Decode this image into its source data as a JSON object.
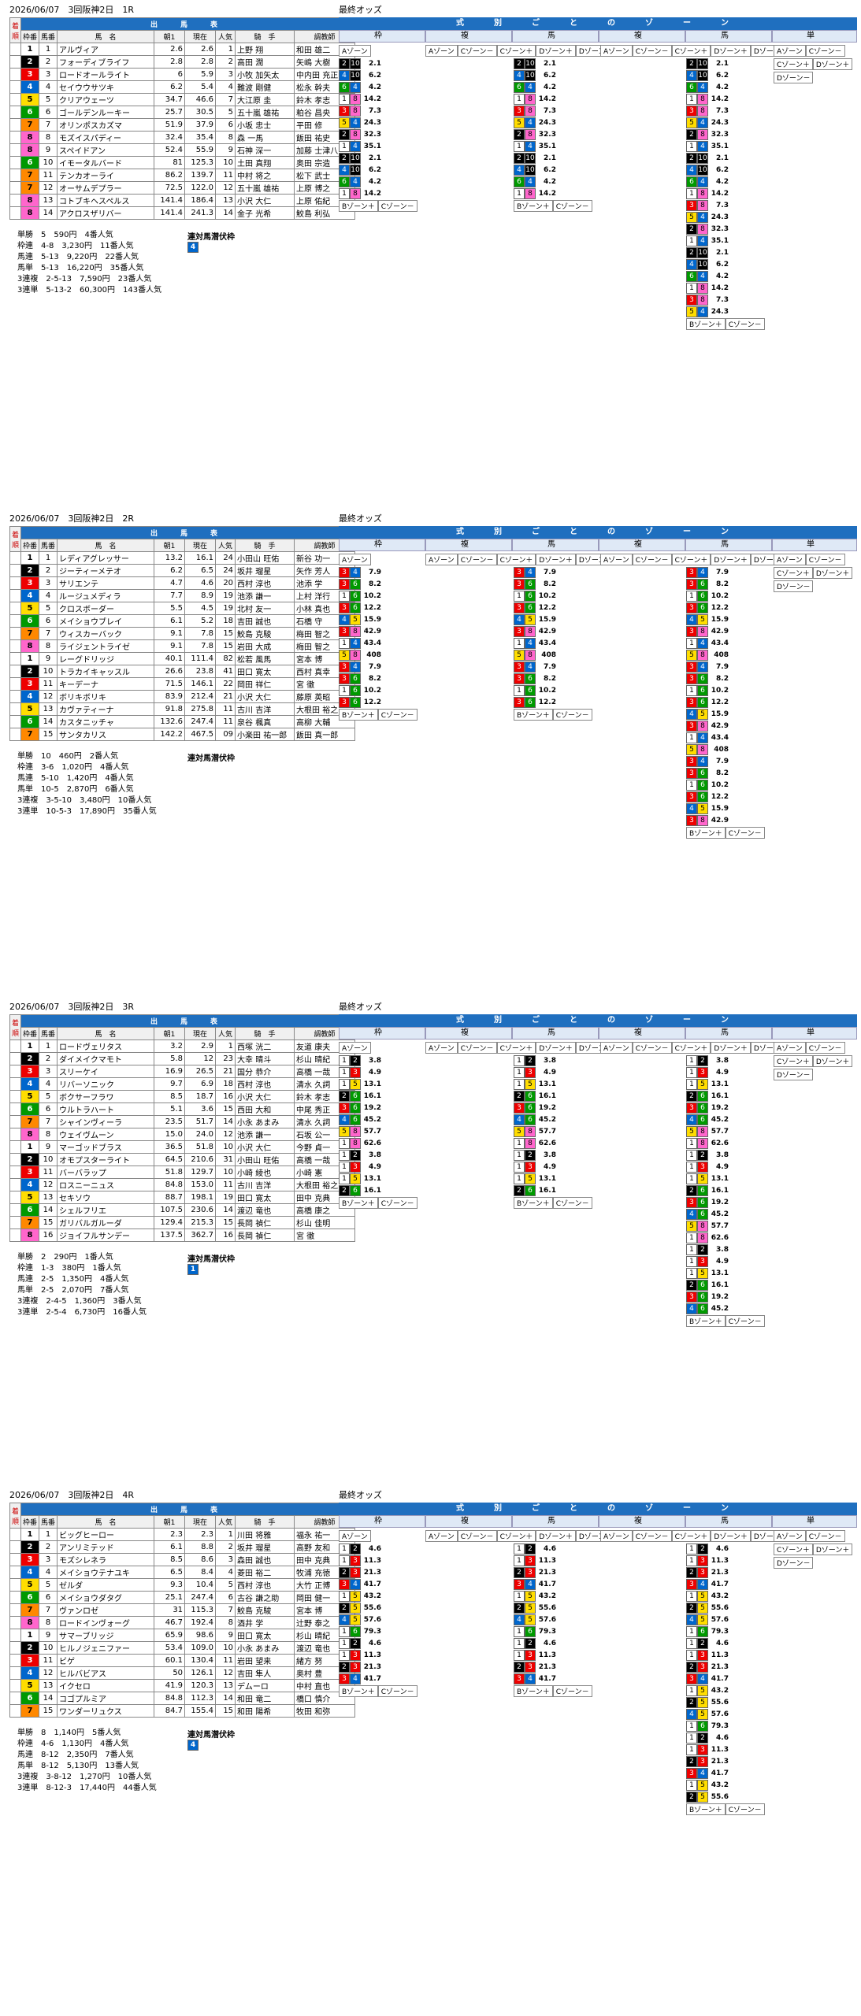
{
  "races": [
    {
      "header": "2026/06/07　3回阪神2日　1R",
      "table_title": "出　馬　表",
      "final_odds": "最終オッズ",
      "zone_title": "式　別　ご　と　の　ゾ　ー　ン",
      "cols": {
        "waku": "枠番",
        "uma": "馬番",
        "name": "馬　名",
        "odds_group": "単勝オッズ",
        "odds_first": "朝1",
        "odds_now": "現在",
        "ninki": "人気",
        "jockey": "騎　手",
        "trainer": "調教師"
      },
      "zone_heads": [
        "枠",
        "複",
        "馬",
        "複",
        "馬",
        "単"
      ],
      "zone_labels": [
        "Aゾーン",
        "Bゾーン＋",
        "Cゾーン－",
        "Bゾーン－",
        "Cゾーン＋",
        "Dゾーン＋",
        "Dゾーン－"
      ],
      "horses": [
        {
          "w": "1",
          "u": "1",
          "n": "アルヴィア",
          "a": "2.6",
          "b": "2.6",
          "p": "1",
          "j": "上野 翔",
          "t": "和田 雄二"
        },
        {
          "w": "2",
          "u": "2",
          "n": "フォーディブライフ",
          "a": "2.8",
          "b": "2.8",
          "p": "2",
          "j": "高田 潤",
          "t": "矢嶋 大樹"
        },
        {
          "w": "3",
          "u": "3",
          "n": "ロードオールライト",
          "a": "6",
          "b": "5.9",
          "p": "3",
          "j": "小牧 加矢太",
          "t": "中内田 充正"
        },
        {
          "w": "4",
          "u": "4",
          "n": "セイウウサツキ",
          "a": "6.2",
          "b": "5.4",
          "p": "4",
          "j": "難波 剛健",
          "t": "松永 幹夫"
        },
        {
          "w": "5",
          "u": "5",
          "n": "クリアウェーツ",
          "a": "34.7",
          "b": "46.6",
          "p": "7",
          "j": "大江原 圭",
          "t": "鈴木 孝志"
        },
        {
          "w": "6",
          "u": "6",
          "n": "ゴールデンルーキー",
          "a": "25.7",
          "b": "30.5",
          "p": "5",
          "j": "五十嵐 雄祐",
          "t": "粕谷 昌央"
        },
        {
          "w": "7",
          "u": "7",
          "n": "オリンポスカズマ",
          "a": "51.9",
          "b": "37.9",
          "p": "6",
          "j": "小坂 忠士",
          "t": "平田 修"
        },
        {
          "w": "8",
          "u": "8",
          "n": "モズイスパディー",
          "a": "32.4",
          "b": "35.4",
          "p": "8",
          "j": "森 一馬",
          "t": "飯田 祐史"
        },
        {
          "w": "8",
          "u": "9",
          "n": "スペイドアン",
          "a": "52.4",
          "b": "55.9",
          "p": "9",
          "j": "石神 深一",
          "t": "加藤 士津八"
        },
        {
          "w": "6",
          "u": "10",
          "n": "イモータルバード",
          "a": "81",
          "b": "125.3",
          "p": "10",
          "j": "土田 真翔",
          "t": "奥田 宗造"
        },
        {
          "w": "7",
          "u": "11",
          "n": "テンカオーライ",
          "a": "86.2",
          "b": "139.7",
          "p": "11",
          "j": "中村 将之",
          "t": "松下 武士"
        },
        {
          "w": "7",
          "u": "12",
          "n": "オーサムデプラー",
          "a": "72.5",
          "b": "122.0",
          "p": "12",
          "j": "五十嵐 雄祐",
          "t": "上原 博之"
        },
        {
          "w": "8",
          "u": "13",
          "n": "コトブキヘスペルス",
          "a": "141.4",
          "b": "186.4",
          "p": "13",
          "j": "小沢 大仁",
          "t": "上原 佑紀"
        },
        {
          "w": "8",
          "u": "14",
          "n": "アクロスザリバー",
          "a": "141.4",
          "b": "241.3",
          "p": "14",
          "j": "金子 光希",
          "t": "鮫島 利弘"
        }
      ],
      "results": [
        "単勝　5　590円　4番人気",
        "枠連　4-8　3,230円　11番人気",
        "馬連　5-13　9,220円　22番人気",
        "馬単　5-13　16,220円　35番人気",
        "3連複　2-5-13　7,590円　23番人気",
        "3連単　5-13-2　60,300円　143番人気"
      ],
      "result_title": "連対馬潜伏枠",
      "result_chip": "4"
    },
    {
      "header": "2026/06/07　3回阪神2日　2R",
      "table_title": "出　馬　表",
      "final_odds": "最終オッズ",
      "zone_title": "式　別　ご　と　の　ゾ　ー　ン",
      "cols": {
        "waku": "枠番",
        "uma": "馬番",
        "name": "馬　名",
        "odds_group": "単勝オッズ",
        "odds_first": "朝1",
        "odds_now": "現在",
        "ninki": "人気",
        "jockey": "騎　手",
        "trainer": "調教師"
      },
      "zone_heads": [
        "枠",
        "複",
        "馬",
        "複",
        "馬",
        "単"
      ],
      "zone_labels": [
        "Aゾーン",
        "Bゾーン＋",
        "Cゾーン－",
        "Bゾーン－",
        "Cゾーン＋",
        "Dゾーン＋",
        "Dゾーン－"
      ],
      "horses": [
        {
          "w": "1",
          "u": "1",
          "n": "レディアグレッサー",
          "a": "13.2",
          "b": "16.1",
          "p": "24",
          "j": "小田山 旺佑",
          "t": "新谷 功一"
        },
        {
          "w": "2",
          "u": "2",
          "n": "ジーティーメテオ",
          "a": "6.2",
          "b": "6.5",
          "p": "24",
          "j": "坂井 瑠星",
          "t": "矢作 芳人"
        },
        {
          "w": "3",
          "u": "3",
          "n": "サリエンテ",
          "a": "4.7",
          "b": "4.6",
          "p": "20",
          "j": "西村 淳也",
          "t": "池添 学"
        },
        {
          "w": "4",
          "u": "4",
          "n": "ルージュメディラ",
          "a": "7.7",
          "b": "8.9",
          "p": "19",
          "j": "池添 謙一",
          "t": "上村 洋行"
        },
        {
          "w": "5",
          "u": "5",
          "n": "クロスボーダー",
          "a": "5.5",
          "b": "4.5",
          "p": "19",
          "j": "北村 友一",
          "t": "小林 真也"
        },
        {
          "w": "6",
          "u": "6",
          "n": "メイショウブレイ",
          "a": "6.1",
          "b": "5.2",
          "p": "18",
          "j": "吉田 誠也",
          "t": "石橋 守"
        },
        {
          "w": "7",
          "u": "7",
          "n": "ウィスカーバック",
          "a": "9.1",
          "b": "7.8",
          "p": "15",
          "j": "鮫島 克駿",
          "t": "梅田 智之"
        },
        {
          "w": "8",
          "u": "8",
          "n": "ライジェントライゼ",
          "a": "9.1",
          "b": "7.8",
          "p": "15",
          "j": "岩田 大成",
          "t": "梅田 智之"
        },
        {
          "w": "1",
          "u": "9",
          "n": "レーグドリッジ",
          "a": "40.1",
          "b": "111.4",
          "p": "82",
          "j": "松若 風馬",
          "t": "宮本 博"
        },
        {
          "w": "2",
          "u": "10",
          "n": "トラカイキャッスル",
          "a": "26.6",
          "b": "23.8",
          "p": "41",
          "j": "田口 寛太",
          "t": "西村 真幸"
        },
        {
          "w": "3",
          "u": "11",
          "n": "キーデーナ",
          "a": "71.5",
          "b": "146.1",
          "p": "22",
          "j": "岡田 祥仁",
          "t": "宮 徹"
        },
        {
          "w": "4",
          "u": "12",
          "n": "ボリキボリキ",
          "a": "83.9",
          "b": "212.4",
          "p": "21",
          "j": "小沢 大仁",
          "t": "藤原 英昭"
        },
        {
          "w": "5",
          "u": "13",
          "n": "カヴァティーナ",
          "a": "91.8",
          "b": "275.8",
          "p": "11",
          "j": "古川 吉洋",
          "t": "大根田 裕之"
        },
        {
          "w": "6",
          "u": "14",
          "n": "カスタニッチャ",
          "a": "132.6",
          "b": "247.4",
          "p": "11",
          "j": "泉谷 楓真",
          "t": "高柳 大輔"
        },
        {
          "w": "7",
          "u": "15",
          "n": "サンタカリス",
          "a": "142.2",
          "b": "467.5",
          "p": "09",
          "j": "小楽田 祐一郎",
          "t": "飯田 真一郎"
        }
      ],
      "results": [
        "単勝　10　460円　2番人気",
        "枠連　3-6　1,020円　4番人気",
        "馬連　5-10　1,420円　4番人気",
        "馬単　10-5　2,870円　6番人気",
        "3連複　3-5-10　3,480円　10番人気",
        "3連単　10-5-3　17,890円　35番人気"
      ],
      "result_title": "連対馬潜伏枠",
      "result_chip": ""
    },
    {
      "header": "2026/06/07　3回阪神2日　3R",
      "table_title": "出　馬　表",
      "final_odds": "最終オッズ",
      "zone_title": "式　別　ご　と　の　ゾ　ー　ン",
      "cols": {
        "waku": "枠番",
        "uma": "馬番",
        "name": "馬　名",
        "odds_group": "単勝オッズ",
        "odds_first": "朝1",
        "odds_now": "現在",
        "ninki": "人気",
        "jockey": "騎　手",
        "trainer": "調教師"
      },
      "zone_heads": [
        "枠",
        "複",
        "馬",
        "複",
        "馬",
        "単"
      ],
      "zone_labels": [
        "Aゾーン",
        "Bゾーン＋",
        "Cゾーン－",
        "Bゾーン－",
        "Cゾーン＋",
        "Dゾーン＋",
        "Dゾーン－"
      ],
      "horses": [
        {
          "w": "1",
          "u": "1",
          "n": "ロードヴェリタス",
          "a": "3.2",
          "b": "2.9",
          "p": "1",
          "j": "西塚 洸二",
          "t": "友道 康夫"
        },
        {
          "w": "2",
          "u": "2",
          "n": "ダイメイクマモト",
          "a": "5.8",
          "b": "12",
          "p": "23",
          "j": "大幸 晴斗",
          "t": "杉山 晴紀"
        },
        {
          "w": "3",
          "u": "3",
          "n": "スリーケイ",
          "a": "16.9",
          "b": "26.5",
          "p": "21",
          "j": "国分 恭介",
          "t": "高橋 一哉"
        },
        {
          "w": "4",
          "u": "4",
          "n": "リバーソニック",
          "a": "9.7",
          "b": "6.9",
          "p": "18",
          "j": "西村 淳也",
          "t": "清水 久詞"
        },
        {
          "w": "5",
          "u": "5",
          "n": "ボクサーフラワ",
          "a": "8.5",
          "b": "18.7",
          "p": "16",
          "j": "小沢 大仁",
          "t": "鈴木 孝志"
        },
        {
          "w": "6",
          "u": "6",
          "n": "ウルトラハート",
          "a": "5.1",
          "b": "3.6",
          "p": "15",
          "j": "西田 大和",
          "t": "中尾 秀正"
        },
        {
          "w": "7",
          "u": "7",
          "n": "シャインヴィーラ",
          "a": "23.5",
          "b": "51.7",
          "p": "14",
          "j": "小永 あまみ",
          "t": "清水 久詞"
        },
        {
          "w": "8",
          "u": "8",
          "n": "ウェイヴムーン",
          "a": "15.0",
          "b": "24.0",
          "p": "12",
          "j": "池添 謙一",
          "t": "石坂 公一"
        },
        {
          "w": "1",
          "u": "9",
          "n": "マーゴッドブラス",
          "a": "36.5",
          "b": "51.8",
          "p": "10",
          "j": "小沢 大仁",
          "t": "今野 貞一"
        },
        {
          "w": "2",
          "u": "10",
          "n": "オモプスターライト",
          "a": "64.5",
          "b": "210.6",
          "p": "31",
          "j": "小田山 旺佑",
          "t": "高橋 一哉"
        },
        {
          "w": "3",
          "u": "11",
          "n": "バーバラップ",
          "a": "51.8",
          "b": "129.7",
          "p": "10",
          "j": "小崎 綾也",
          "t": "小崎 憲"
        },
        {
          "w": "4",
          "u": "12",
          "n": "ロスニーニュス",
          "a": "84.8",
          "b": "153.0",
          "p": "11",
          "j": "古川 吉洋",
          "t": "大根田 裕之"
        },
        {
          "w": "5",
          "u": "13",
          "n": "セキソウ",
          "a": "88.7",
          "b": "198.1",
          "p": "19",
          "j": "田口 寛太",
          "t": "田中 克典"
        },
        {
          "w": "6",
          "u": "14",
          "n": "シェルフリエ",
          "a": "107.5",
          "b": "230.6",
          "p": "14",
          "j": "渡辺 竜也",
          "t": "高橋 康之"
        },
        {
          "w": "7",
          "u": "15",
          "n": "ガリバルガルーダ",
          "a": "129.4",
          "b": "215.3",
          "p": "15",
          "j": "長岡 禎仁",
          "t": "杉山 佳明"
        },
        {
          "w": "8",
          "u": "16",
          "n": "ジョイフルサンデー",
          "a": "137.5",
          "b": "362.7",
          "p": "16",
          "j": "長岡 禎仁",
          "t": "宮 徹"
        }
      ],
      "results": [
        "単勝　2　290円　1番人気",
        "枠連　1-3　380円　1番人気",
        "馬連　2-5　1,350円　4番人気",
        "馬単　2-5　2,070円　7番人気",
        "3連複　2-4-5　1,360円　3番人気",
        "3連単　2-5-4　6,730円　16番人気"
      ],
      "result_title": "連対馬潜伏枠",
      "result_chip": "1"
    },
    {
      "header": "2026/06/07　3回阪神2日　4R",
      "table_title": "出　馬　表",
      "final_odds": "最終オッズ",
      "zone_title": "式　別　ご　と　の　ゾ　ー　ン",
      "cols": {
        "waku": "枠番",
        "uma": "馬番",
        "name": "馬　名",
        "odds_group": "単勝オッズ",
        "odds_first": "朝1",
        "odds_now": "現在",
        "ninki": "人気",
        "jockey": "騎　手",
        "trainer": "調教師"
      },
      "zone_heads": [
        "枠",
        "複",
        "馬",
        "複",
        "馬",
        "単"
      ],
      "zone_labels": [
        "Aゾーン",
        "Bゾーン＋",
        "Cゾーン－",
        "Bゾーン－",
        "Cゾーン＋",
        "Dゾーン＋",
        "Dゾーン－"
      ],
      "horses": [
        {
          "w": "1",
          "u": "1",
          "n": "ビッグヒーロー",
          "a": "2.3",
          "b": "2.3",
          "p": "1",
          "j": "川田 将雅",
          "t": "福永 祐一"
        },
        {
          "w": "2",
          "u": "2",
          "n": "アンリミテッド",
          "a": "6.1",
          "b": "8.8",
          "p": "2",
          "j": "坂井 瑠星",
          "t": "高野 友和"
        },
        {
          "w": "3",
          "u": "3",
          "n": "モズシレネラ",
          "a": "8.5",
          "b": "8.6",
          "p": "3",
          "j": "森田 誠也",
          "t": "田中 克典"
        },
        {
          "w": "4",
          "u": "4",
          "n": "メイショウテナユキ",
          "a": "6.5",
          "b": "8.4",
          "p": "4",
          "j": "菱田 裕二",
          "t": "牧浦 充徳"
        },
        {
          "w": "5",
          "u": "5",
          "n": "ゼルダ",
          "a": "9.3",
          "b": "10.4",
          "p": "5",
          "j": "西村 淳也",
          "t": "大竹 正博"
        },
        {
          "w": "6",
          "u": "6",
          "n": "メイショウダタグ",
          "a": "25.1",
          "b": "247.4",
          "p": "6",
          "j": "古谷 謙之助",
          "t": "岡田 健一"
        },
        {
          "w": "7",
          "u": "7",
          "n": "ヴァンロゼ",
          "a": "31",
          "b": "115.3",
          "p": "7",
          "j": "鮫島 克駿",
          "t": "宮本 博"
        },
        {
          "w": "8",
          "u": "8",
          "n": "ロードインヴォーグ",
          "a": "46.7",
          "b": "192.4",
          "p": "8",
          "j": "酒井 学",
          "t": "辻野 泰之"
        },
        {
          "w": "1",
          "u": "9",
          "n": "サマーブリッジ",
          "a": "65.9",
          "b": "98.6",
          "p": "9",
          "j": "田口 寛太",
          "t": "杉山 晴紀"
        },
        {
          "w": "2",
          "u": "10",
          "n": "ヒルノジェニファー",
          "a": "53.4",
          "b": "109.0",
          "p": "10",
          "j": "小永 あまみ",
          "t": "渡辺 竜也"
        },
        {
          "w": "3",
          "u": "11",
          "n": "ビゲ",
          "a": "60.1",
          "b": "130.4",
          "p": "11",
          "j": "岩田 望来",
          "t": "緒方 努"
        },
        {
          "w": "4",
          "u": "12",
          "n": "ヒルバビアス",
          "a": "50",
          "b": "126.1",
          "p": "12",
          "j": "吉田 隼人",
          "t": "奥村 豊"
        },
        {
          "w": "5",
          "u": "13",
          "n": "イクセロ",
          "a": "41.9",
          "b": "120.3",
          "p": "13",
          "j": "デムーロ",
          "t": "中村 直也"
        },
        {
          "w": "6",
          "u": "14",
          "n": "コゴプルミア",
          "a": "84.8",
          "b": "112.3",
          "p": "14",
          "j": "和田 竜二",
          "t": "橋口 慎介"
        },
        {
          "w": "7",
          "u": "15",
          "n": "ワンダーリュクス",
          "a": "84.7",
          "b": "155.4",
          "p": "15",
          "j": "和田 陽希",
          "t": "牧田 和弥"
        }
      ],
      "results": [
        "単勝　8　1,140円　5番人気",
        "枠連　4-6　1,130円　4番人気",
        "馬連　8-12　2,350円　7番人気",
        "馬単　8-12　5,130円　13番人気",
        "3連複　3-8-12　1,270円　10番人気",
        "3連単　8-12-3　17,440円　44番人気"
      ],
      "result_title": "連対馬潜伏枠",
      "result_chip": "4"
    }
  ],
  "zone_samples": [
    [
      [
        "2",
        "10",
        "2.1"
      ],
      [
        "4",
        "10",
        "6.2"
      ],
      [
        "6",
        "4",
        "4.2"
      ],
      [
        "1",
        "8",
        "14.2"
      ],
      [
        "3",
        "8",
        "7.3"
      ],
      [
        "5",
        "4",
        "24.3"
      ],
      [
        "2",
        "8",
        "32.3"
      ],
      [
        "1",
        "4",
        "35.1"
      ]
    ],
    [
      [
        "3",
        "4",
        "7.9"
      ],
      [
        "3",
        "6",
        "8.2"
      ],
      [
        "1",
        "6",
        "10.2"
      ],
      [
        "3",
        "6",
        "12.2"
      ],
      [
        "4",
        "5",
        "15.9"
      ],
      [
        "3",
        "8",
        "42.9"
      ],
      [
        "1",
        "4",
        "43.4"
      ],
      [
        "5",
        "8",
        "408"
      ]
    ],
    [
      [
        "1",
        "2",
        "3.8"
      ],
      [
        "1",
        "3",
        "4.9"
      ],
      [
        "1",
        "5",
        "13.1"
      ],
      [
        "2",
        "6",
        "16.1"
      ],
      [
        "3",
        "6",
        "19.2"
      ],
      [
        "4",
        "6",
        "45.2"
      ],
      [
        "5",
        "8",
        "57.7"
      ],
      [
        "1",
        "8",
        "62.6"
      ]
    ],
    [
      [
        "1",
        "2",
        "4.6"
      ],
      [
        "1",
        "3",
        "11.3"
      ],
      [
        "2",
        "3",
        "21.3"
      ],
      [
        "3",
        "4",
        "41.7"
      ],
      [
        "1",
        "5",
        "43.2"
      ],
      [
        "2",
        "5",
        "55.6"
      ],
      [
        "4",
        "5",
        "57.6"
      ],
      [
        "1",
        "6",
        "79.3"
      ]
    ]
  ],
  "zone_color_names": [
    "white",
    "black",
    "red",
    "blue",
    "yellow",
    "green",
    "orange",
    "pink"
  ]
}
